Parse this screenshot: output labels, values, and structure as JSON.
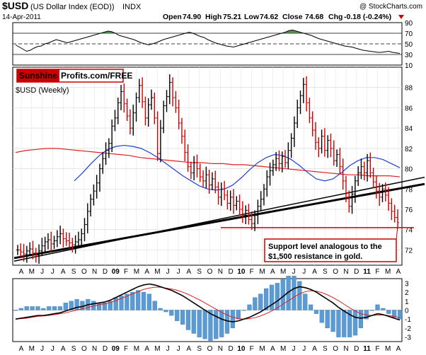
{
  "header": {
    "symbol": "$USD",
    "description": "(US Dollar Index (EOD))",
    "exchange": "INDX",
    "watermark": "@ StockCharts.com",
    "date": "14-Apr-2011",
    "open_label": "Open",
    "open": "74.90",
    "high_label": "High",
    "high": "75.21",
    "low_label": "Low",
    "low": "74.62",
    "close_label": "Close",
    "close": "74.68",
    "chg_label": "Chg",
    "chg": "-0.18 (-0.24%)"
  },
  "logo": {
    "part1": "Sunshine",
    "part2": "Profits.com/FREE"
  },
  "annotation": {
    "line1": "Support level analogous to the",
    "line2": "$1,500 resistance in gold.",
    "support_level": 74.2
  },
  "colors": {
    "accent_red": "#cc0000",
    "ma_blue": "#1f3fcf",
    "ma_red": "#dd2222",
    "histogram": "#5b9bd5",
    "rsi_fill": "#3a7d3a"
  },
  "chart_data": [
    {
      "type": "line",
      "name": "rsi-panel",
      "ylim": [
        10,
        90
      ],
      "ticks": [
        "90",
        "70",
        "50",
        "30",
        "10"
      ],
      "levels": [
        70,
        50,
        30
      ],
      "values": [
        48,
        44,
        40,
        36,
        38,
        42,
        45,
        46,
        50,
        52,
        55,
        58,
        56,
        54,
        52,
        54,
        56,
        58,
        60,
        62,
        64,
        66,
        68,
        70,
        72,
        74,
        73,
        70,
        66,
        64,
        62,
        60,
        58,
        55,
        52,
        50,
        48,
        50,
        52,
        55,
        58,
        60,
        62,
        64,
        66,
        68,
        70,
        72,
        70,
        67,
        64,
        62,
        58,
        55,
        52,
        50,
        48,
        46,
        45,
        44,
        46,
        48,
        50,
        52,
        54,
        56,
        58,
        60,
        62,
        64,
        66,
        68,
        70,
        72,
        75,
        76,
        74,
        72,
        70,
        68,
        66,
        63,
        60,
        58,
        56,
        54,
        52,
        50,
        48,
        46,
        45,
        44,
        42,
        40,
        38,
        37,
        36,
        35,
        34,
        34,
        35,
        36,
        34,
        33,
        32
      ]
    },
    {
      "type": "bar",
      "name": "price-panel",
      "ylabel": "$USD (Weekly)",
      "ylim": [
        70.5,
        90
      ],
      "ticks": [
        "88",
        "86",
        "84",
        "82",
        "80",
        "78",
        "76",
        "74",
        "72"
      ],
      "x_labels": [
        "A",
        "M",
        "J",
        "J",
        "A",
        "S",
        "O",
        "N",
        "D",
        "09",
        "F",
        "M",
        "A",
        "M",
        "J",
        "J",
        "A",
        "S",
        "O",
        "N",
        "D",
        "10",
        "F",
        "M",
        "A",
        "M",
        "J",
        "J",
        "A",
        "S",
        "O",
        "N",
        "D",
        "11",
        "F",
        "M",
        "A"
      ],
      "closes": [
        72.0,
        71.8,
        71.6,
        71.9,
        72.1,
        71.7,
        71.5,
        71.9,
        72.4,
        72.8,
        73.0,
        72.6,
        72.9,
        73.3,
        73.6,
        73.1,
        72.9,
        72.7,
        72.5,
        72.8,
        73.0,
        73.6,
        74.5,
        75.8,
        77.0,
        77.8,
        78.6,
        80.0,
        81.0,
        81.8,
        82.5,
        84.2,
        85.0,
        86.5,
        87.6,
        86.4,
        85.2,
        84.0,
        85.5,
        87.0,
        88.2,
        86.6,
        85.0,
        86.3,
        87.0,
        85.0,
        81.5,
        84.0,
        86.2,
        87.1,
        88.5,
        87.0,
        86.0,
        84.5,
        83.2,
        81.6,
        80.2,
        79.6,
        80.6,
        80.0,
        79.2,
        78.8,
        79.4,
        78.4,
        79.0,
        78.2,
        77.2,
        78.0,
        77.4,
        76.6,
        77.2,
        76.4,
        76.8,
        76.0,
        75.4,
        75.9,
        75.0,
        74.6,
        75.4,
        76.3,
        77.0,
        78.0,
        79.2,
        79.8,
        80.4,
        81.0,
        80.5,
        81.2,
        80.6,
        81.8,
        83.0,
        84.5,
        86.0,
        87.2,
        88.3,
        86.5,
        85.0,
        83.8,
        82.6,
        82.0,
        83.2,
        81.8,
        82.8,
        82.0,
        80.8,
        81.4,
        80.2,
        78.8,
        77.2,
        76.3,
        77.5,
        78.8,
        79.6,
        80.2,
        79.6,
        80.8,
        79.6,
        78.7,
        77.8,
        77.2,
        78.0,
        77.4,
        76.6,
        75.8,
        75.2,
        74.7
      ],
      "ma_short_blue": [
        78.8,
        79.6,
        80.5,
        81.3,
        81.9,
        82.2,
        82.3,
        82.2,
        82.0,
        81.6,
        81.1,
        80.5,
        79.9,
        79.3,
        78.8,
        78.3,
        78.0,
        77.9,
        78.0,
        78.4,
        79.1,
        79.9,
        80.6,
        81.1,
        81.4,
        81.3,
        80.9,
        80.3,
        79.6,
        79.0,
        78.8,
        79.0,
        79.6,
        80.3,
        80.8,
        81.1,
        81.1,
        80.9,
        80.5,
        80.1
      ],
      "ma_long_red": [
        81.6,
        81.8,
        81.9,
        82.0,
        82.0,
        81.9,
        81.8,
        81.7,
        81.6,
        81.5,
        81.4,
        81.3,
        81.1,
        81.0,
        80.9,
        80.8,
        80.7,
        80.6,
        80.6,
        80.5,
        80.5,
        80.4,
        80.4,
        80.3,
        80.2,
        80.1,
        80.0,
        79.9,
        79.8,
        79.7,
        79.6,
        79.5,
        79.4,
        79.4,
        79.3,
        79.3,
        79.3,
        79.2
      ],
      "trend_thick": [
        [
          0,
          71.2
        ],
        [
          125,
          78.0
        ]
      ],
      "trend_thin": [
        [
          0,
          70.9
        ],
        [
          125,
          78.6
        ]
      ]
    },
    {
      "type": "line",
      "name": "macd-panel",
      "ylim": [
        -3.5,
        3.5
      ],
      "ticks": [
        "3",
        "2",
        "1",
        "0",
        "-1",
        "-2",
        "-3"
      ],
      "macd": [
        -1.0,
        -0.9,
        -0.8,
        -0.7,
        -0.6,
        -0.6,
        -0.5,
        -0.4,
        -0.3,
        -0.1,
        0.1,
        0.3,
        0.4,
        0.6,
        0.7,
        0.8,
        0.9,
        1.1,
        1.4,
        1.7,
        2.0,
        2.3,
        2.6,
        2.8,
        2.9,
        2.8,
        2.6,
        2.4,
        2.2,
        1.9,
        1.6,
        1.2,
        0.8,
        0.4,
        0.0,
        -0.4,
        -0.7,
        -1.0,
        -1.2,
        -1.3,
        -1.2,
        -1.0,
        -0.8,
        -0.5,
        -0.2,
        0.2,
        0.6,
        1.0,
        1.5,
        2.0,
        2.4,
        2.6,
        2.5,
        2.3,
        2.0,
        1.6,
        1.2,
        0.8,
        0.3,
        -0.1,
        -0.5,
        -0.8,
        -0.9,
        -0.8,
        -0.6,
        -0.4,
        -0.5,
        -0.7,
        -0.9,
        -1.1
      ],
      "signal": [
        -1.0,
        -0.95,
        -0.9,
        -0.8,
        -0.7,
        -0.65,
        -0.6,
        -0.5,
        -0.4,
        -0.3,
        -0.15,
        0.0,
        0.15,
        0.3,
        0.45,
        0.6,
        0.7,
        0.85,
        1.05,
        1.3,
        1.55,
        1.8,
        2.05,
        2.3,
        2.45,
        2.55,
        2.55,
        2.45,
        2.35,
        2.2,
        2.0,
        1.75,
        1.45,
        1.15,
        0.8,
        0.45,
        0.1,
        -0.25,
        -0.55,
        -0.8,
        -0.95,
        -1.0,
        -0.95,
        -0.85,
        -0.65,
        -0.4,
        -0.1,
        0.25,
        0.65,
        1.05,
        1.45,
        1.8,
        2.05,
        2.15,
        2.1,
        1.95,
        1.7,
        1.4,
        1.05,
        0.65,
        0.25,
        -0.1,
        -0.4,
        -0.55,
        -0.6,
        -0.55,
        -0.55,
        -0.6,
        -0.7,
        -0.85
      ]
    }
  ]
}
